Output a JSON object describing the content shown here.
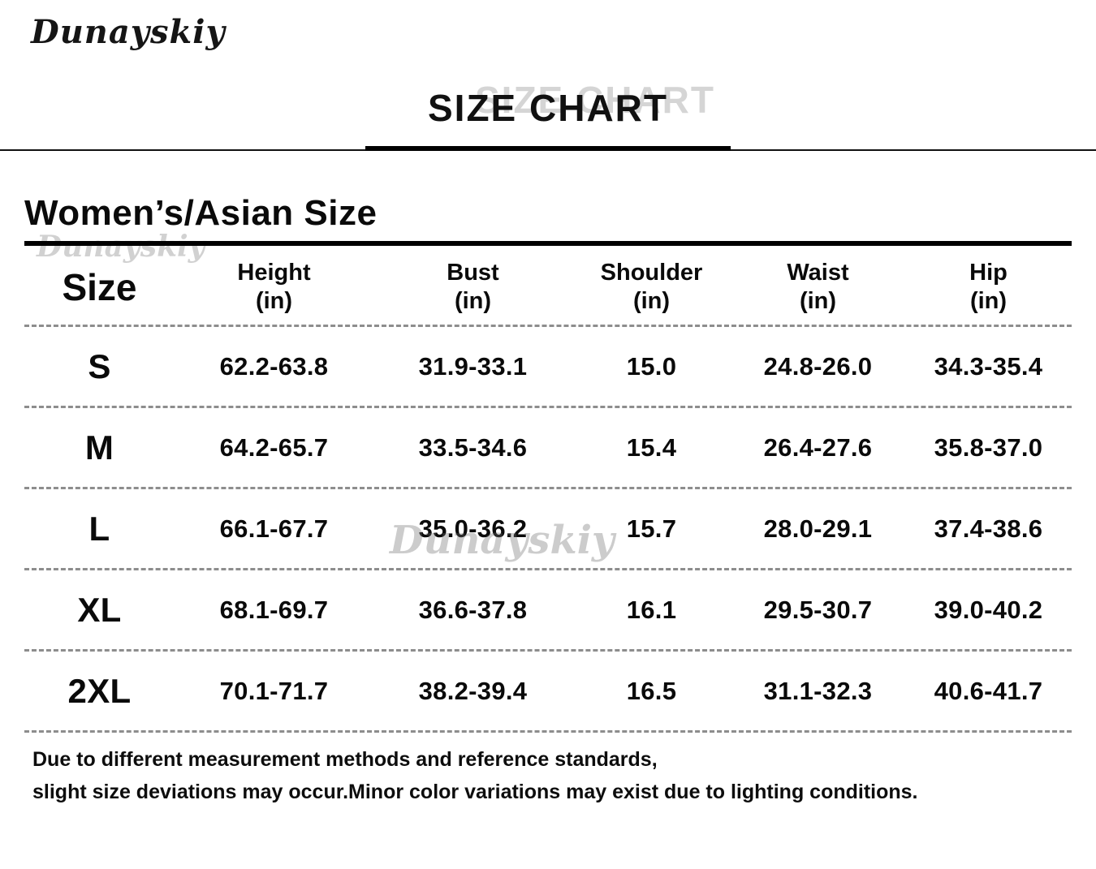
{
  "brand_logo": "Dunayskiy",
  "page_title": "SIZE CHART",
  "watermark_text": "Dunayskiy",
  "chart_data": {
    "type": "table",
    "title": "SIZE CHART",
    "subtitle": "Women’s/Asian Size",
    "headers": [
      {
        "label": "Size",
        "unit": ""
      },
      {
        "label": "Height",
        "unit": "(in)"
      },
      {
        "label": "Bust",
        "unit": "(in)"
      },
      {
        "label": "Shoulder",
        "unit": "(in)"
      },
      {
        "label": "Waist",
        "unit": "(in)"
      },
      {
        "label": "Hip",
        "unit": "(in)"
      }
    ],
    "rows": [
      {
        "size": "S",
        "height": "62.2-63.8",
        "bust": "31.9-33.1",
        "shoulder": "15.0",
        "waist": "24.8-26.0",
        "hip": "34.3-35.4"
      },
      {
        "size": "M",
        "height": "64.2-65.7",
        "bust": "33.5-34.6",
        "shoulder": "15.4",
        "waist": "26.4-27.6",
        "hip": "35.8-37.0"
      },
      {
        "size": "L",
        "height": "66.1-67.7",
        "bust": "35.0-36.2",
        "shoulder": "15.7",
        "waist": "28.0-29.1",
        "hip": "37.4-38.6"
      },
      {
        "size": "XL",
        "height": "68.1-69.7",
        "bust": "36.6-37.8",
        "shoulder": "16.1",
        "waist": "29.5-30.7",
        "hip": "39.0-40.2"
      },
      {
        "size": "2XL",
        "height": "70.1-71.7",
        "bust": "38.2-39.4",
        "shoulder": "16.5",
        "waist": "31.1-32.3",
        "hip": "40.6-41.7"
      }
    ]
  },
  "notes": {
    "line1": "Due to different measurement methods and reference standards,",
    "line2": "slight size deviations may occur.Minor color variations may exist due to lighting conditions."
  }
}
